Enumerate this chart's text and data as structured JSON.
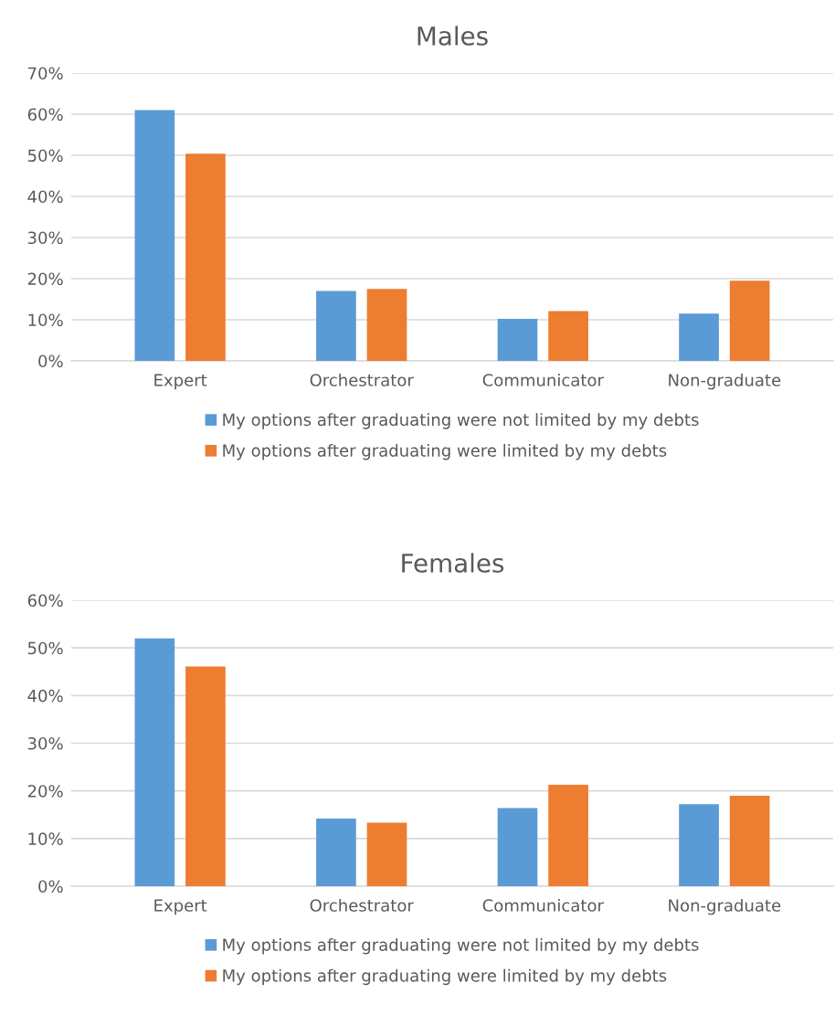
{
  "chart_data": [
    {
      "type": "bar",
      "title": "Males",
      "categories": [
        "Expert",
        "Orchestrator",
        "Communicator",
        "Non-graduate"
      ],
      "series": [
        {
          "name": "My options after graduating were not limited by my debts",
          "color": "#5b9bd5",
          "values": [
            61.0,
            17.0,
            10.2,
            11.5
          ]
        },
        {
          "name": "My options after graduating were limited by my debts",
          "color": "#ed7d31",
          "values": [
            50.4,
            17.5,
            12.1,
            19.5
          ]
        }
      ],
      "ylim": [
        0,
        70
      ],
      "yticks": [
        {
          "value": 0,
          "label": "0%"
        },
        {
          "value": 10,
          "label": "10%"
        },
        {
          "value": 20,
          "label": "20%"
        },
        {
          "value": 30,
          "label": "30%"
        },
        {
          "value": 40,
          "label": "40%"
        },
        {
          "value": 50,
          "label": "50%"
        },
        {
          "value": 60,
          "label": "60%"
        },
        {
          "value": 70,
          "label": "70%"
        }
      ],
      "grid": "y",
      "legend": "bottom"
    },
    {
      "type": "bar",
      "title": "Females",
      "categories": [
        "Expert",
        "Orchestrator",
        "Communicator",
        "Non-graduate"
      ],
      "series": [
        {
          "name": "My options after graduating were not limited by my debts",
          "color": "#5b9bd5",
          "values": [
            52.0,
            14.2,
            16.4,
            17.2
          ]
        },
        {
          "name": "My options after graduating were limited by my debts",
          "color": "#ed7d31",
          "values": [
            46.1,
            13.3,
            21.3,
            19.0
          ]
        }
      ],
      "ylim": [
        0,
        60
      ],
      "yticks": [
        {
          "value": 0,
          "label": "0%"
        },
        {
          "value": 10,
          "label": "10%"
        },
        {
          "value": 20,
          "label": "20%"
        },
        {
          "value": 30,
          "label": "30%"
        },
        {
          "value": 40,
          "label": "40%"
        },
        {
          "value": 50,
          "label": "50%"
        },
        {
          "value": 60,
          "label": "60%"
        }
      ],
      "grid": "y",
      "legend": "bottom"
    }
  ]
}
